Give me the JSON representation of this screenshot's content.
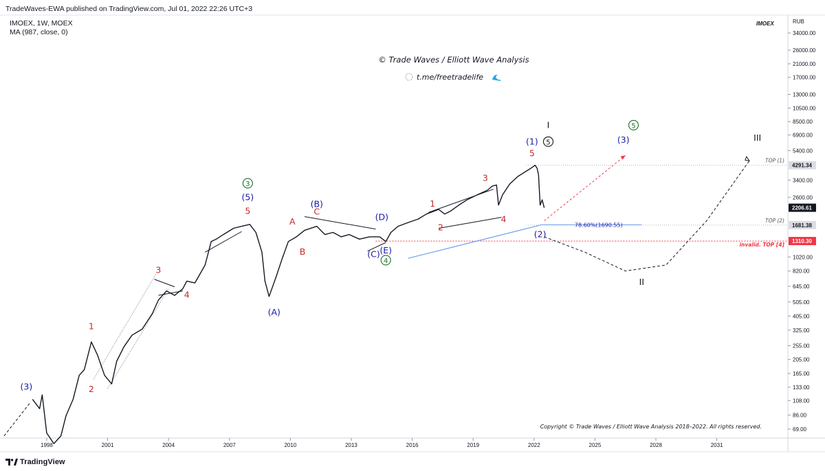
{
  "header": {
    "published": "TradeWaves-EWA published on TradingView.com, Jul 01, 2022 22:26 UTC+3"
  },
  "legend": {
    "symbol_line": "IMOEX, 1W, MOEX",
    "indicator_line": "MA (987, close, 0)"
  },
  "symbol_tag": "IMOEX",
  "currency": "RUB",
  "watermark": {
    "title": "© Trade Waves / Elliott Wave Analysis",
    "link": "t.me/freetradelife"
  },
  "copyright": "Copyright © Trade Waves / Elliott Wave Analysis 2018–2022. All rights reserved.",
  "footer": {
    "brand": "TradingView"
  },
  "colors": {
    "price": "#131722",
    "wave_red": "#c62828",
    "wave_blue": "#1a1aa8",
    "wave_green": "#1b6e2a",
    "fib_line": "#6d9eeb",
    "invalid": "#f23645",
    "projection_red": "#f23645",
    "projection_black": "#131722"
  },
  "chart_data": {
    "type": "line",
    "scale": "log",
    "ylim": [
      60,
      45000
    ],
    "xlim": [
      1995.7,
      2034.5
    ],
    "y_ticks": [
      34000,
      26000,
      21000,
      17000,
      13000,
      10500,
      8500,
      6900,
      5400,
      4291.34,
      3400,
      2600,
      2206.61,
      1681.38,
      1310.3,
      1020,
      820,
      645,
      505,
      405,
      325,
      255,
      205,
      165,
      133,
      108,
      86,
      69
    ],
    "y_tick_labels": [
      "34000.00",
      "26000.00",
      "21000.00",
      "17000.00",
      "13000.00",
      "10500.00",
      "8500.00",
      "6900.00",
      "5400.00",
      "4291.34",
      "3400.00",
      "2600.00",
      "2206.61",
      "1681.38",
      "1310.30",
      "1020.00",
      "820.00",
      "645.00",
      "505.00",
      "405.00",
      "325.00",
      "255.00",
      "205.00",
      "165.00",
      "133.00",
      "108.00",
      "86.00",
      "69.00"
    ],
    "highlighted_ticks": [
      {
        "value": 4291.34,
        "label": "4291.34",
        "style": "gray"
      },
      {
        "value": 2206.61,
        "label": "2206.61",
        "style": "dark"
      },
      {
        "value": 1681.38,
        "label": "1681.38",
        "style": "gray"
      },
      {
        "value": 1310.3,
        "label": "1310.30",
        "style": "red"
      }
    ],
    "x_ticks": [
      1998,
      2001,
      2004,
      2007,
      2010,
      2013,
      2016,
      2019,
      2022,
      2025,
      2028,
      2031
    ],
    "x_tick_labels": [
      "1998",
      "2001",
      "2004",
      "2007",
      "2010",
      "2013",
      "2016",
      "2019",
      "2022",
      "2025",
      "2028",
      "2031"
    ],
    "series": [
      {
        "name": "IMOEX",
        "x": [
          1997.3,
          1997.65,
          1997.78,
          1998.0,
          1998.35,
          1998.7,
          1998.95,
          1999.3,
          1999.6,
          1999.85,
          2000.2,
          2000.5,
          2000.85,
          2001.2,
          2001.45,
          2001.8,
          2002.2,
          2002.7,
          2003.2,
          2003.5,
          2003.9,
          2004.3,
          2004.7,
          2004.9,
          2005.3,
          2005.8,
          2006.1,
          2006.35,
          2006.7,
          2007.2,
          2007.6,
          2008.0,
          2008.3,
          2008.6,
          2008.75,
          2008.95,
          2009.3,
          2009.6,
          2009.9,
          2010.3,
          2010.7,
          2011.3,
          2011.7,
          2012.1,
          2012.5,
          2012.9,
          2013.4,
          2013.9,
          2014.4,
          2014.7,
          2014.95,
          2015.3,
          2015.8,
          2016.3,
          2016.7,
          2017.3,
          2017.6,
          2017.9,
          2018.3,
          2018.7,
          2019.2,
          2019.7,
          2019.95,
          2020.15,
          2020.25,
          2020.45,
          2020.8,
          2021.2,
          2021.6,
          2021.85,
          2022.05,
          2022.15,
          2022.22,
          2022.3,
          2022.4,
          2022.5
        ],
        "values": [
          110,
          95,
          118,
          65,
          55,
          62,
          85,
          110,
          160,
          175,
          270,
          220,
          160,
          140,
          200,
          250,
          300,
          330,
          420,
          520,
          600,
          560,
          620,
          700,
          680,
          900,
          1300,
          1350,
          1450,
          1600,
          1650,
          1700,
          1500,
          1100,
          700,
          550,
          750,
          1000,
          1300,
          1400,
          1550,
          1650,
          1450,
          1500,
          1400,
          1450,
          1350,
          1400,
          1400,
          1300,
          1500,
          1650,
          1750,
          1850,
          2000,
          2150,
          2000,
          2100,
          2300,
          2500,
          2700,
          2900,
          3100,
          3150,
          2300,
          2700,
          3200,
          3600,
          3900,
          4100,
          4291.34,
          4100,
          3700,
          2300,
          2500,
          2206.61
        ]
      },
      {
        "name": "Projection",
        "x": [
          2022.5,
          2024.5,
          2026.5,
          2028.5,
          2030.5,
          2032.6
        ],
        "values": [
          1400,
          1100,
          820,
          900,
          1800,
          4600
        ]
      }
    ],
    "levels": [
      {
        "name": "TOP (1)",
        "value": 4291.34
      },
      {
        "name": "TOP (2)",
        "value": 1681.38
      },
      {
        "name": "invalid. TOP [4]",
        "value": 1310.3
      }
    ],
    "fib_annotation": "78.60%(1690.55)",
    "wave_labels": [
      {
        "text": "(3)",
        "x": 1997.0,
        "y": 128,
        "color": "blue"
      },
      {
        "text": "1",
        "x": 2000.2,
        "y": 330,
        "color": "red"
      },
      {
        "text": "2",
        "x": 2000.2,
        "y": 123,
        "color": "red"
      },
      {
        "text": "3",
        "x": 2003.5,
        "y": 795,
        "color": "red"
      },
      {
        "text": "4",
        "x": 2004.9,
        "y": 540,
        "color": "red"
      },
      {
        "text": "5",
        "x": 2007.9,
        "y": 2000,
        "color": "red"
      },
      {
        "text": "(5)",
        "x": 2007.9,
        "y": 2480,
        "color": "blue"
      },
      {
        "text": "3",
        "x": 2007.9,
        "y": 3100,
        "color": "green",
        "circled": true
      },
      {
        "text": "(A)",
        "x": 2009.2,
        "y": 410,
        "color": "blue"
      },
      {
        "text": "A",
        "x": 2010.1,
        "y": 1700,
        "color": "red"
      },
      {
        "text": "B",
        "x": 2010.6,
        "y": 1060,
        "color": "red"
      },
      {
        "text": "C",
        "x": 2011.3,
        "y": 1980,
        "color": "red"
      },
      {
        "text": "(B)",
        "x": 2011.3,
        "y": 2230,
        "color": "blue"
      },
      {
        "text": "(C)",
        "x": 2014.1,
        "y": 1020,
        "color": "blue"
      },
      {
        "text": "(D)",
        "x": 2014.5,
        "y": 1820,
        "color": "blue"
      },
      {
        "text": "(E)",
        "x": 2014.7,
        "y": 1080,
        "color": "blue"
      },
      {
        "text": "4",
        "x": 2014.7,
        "y": 930,
        "color": "green",
        "circled": true
      },
      {
        "text": "1",
        "x": 2017.0,
        "y": 2250,
        "color": "red"
      },
      {
        "text": "2",
        "x": 2017.4,
        "y": 1550,
        "color": "red"
      },
      {
        "text": "3",
        "x": 2019.6,
        "y": 3350,
        "color": "red"
      },
      {
        "text": "4",
        "x": 2020.5,
        "y": 1760,
        "color": "red"
      },
      {
        "text": "5",
        "x": 2021.9,
        "y": 4950,
        "color": "red"
      },
      {
        "text": "(1)",
        "x": 2021.9,
        "y": 5950,
        "color": "blue"
      },
      {
        "text": "5",
        "x": 2022.7,
        "y": 5950,
        "color": "black",
        "circled": true
      },
      {
        "text": "I",
        "x": 2022.7,
        "y": 7700,
        "color": "black"
      },
      {
        "text": "(2)",
        "x": 2022.3,
        "y": 1390,
        "color": "blue"
      },
      {
        "text": "(3)",
        "x": 2026.4,
        "y": 6100,
        "color": "blue"
      },
      {
        "text": "5",
        "x": 2026.9,
        "y": 7700,
        "color": "green",
        "circled": true
      },
      {
        "text": "II",
        "x": 2027.3,
        "y": 660,
        "color": "black"
      },
      {
        "text": "III",
        "x": 2033.0,
        "y": 6300,
        "color": "black"
      }
    ]
  }
}
